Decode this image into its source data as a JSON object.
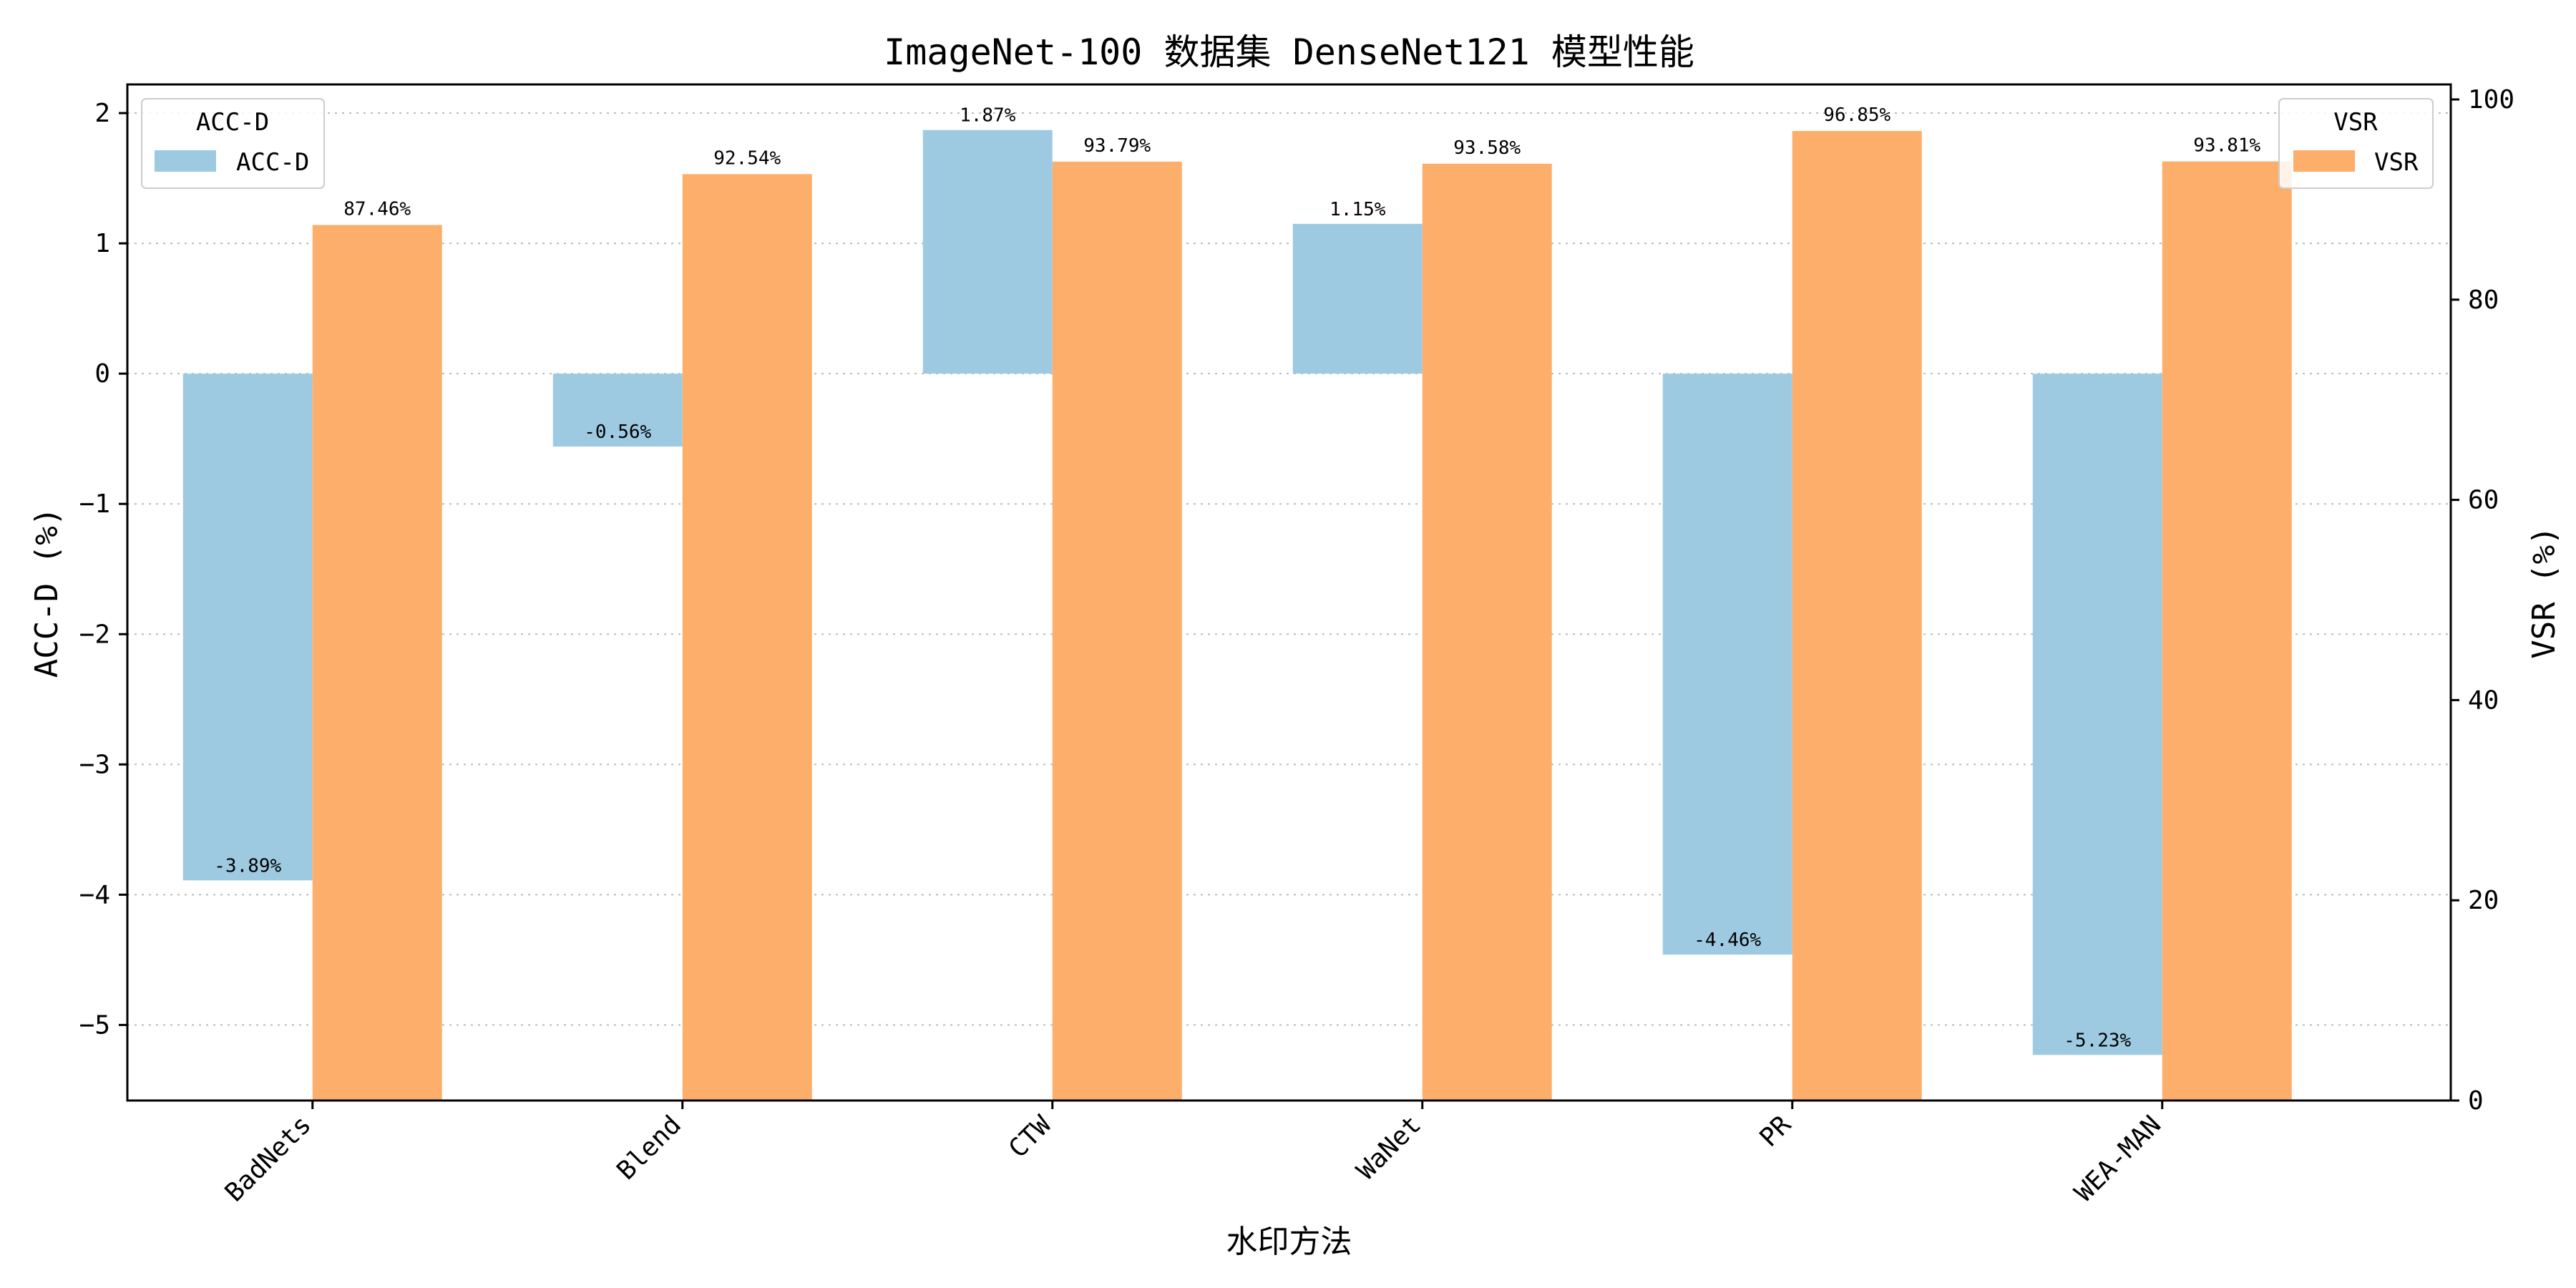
{
  "chart_data": {
    "type": "bar",
    "title": "ImageNet-100 数据集 DenseNet121 模型性能",
    "xlabel": "水印方法",
    "ylabel_left": "ACC-D (%)",
    "ylabel_right": "VSR (%)",
    "categories": [
      "BadNets",
      "Blend",
      "CTW",
      "WaNet",
      "PR",
      "WEA-MAN"
    ],
    "series": [
      {
        "name": "ACC-D",
        "axis": "left",
        "values": [
          -3.89,
          -0.56,
          1.87,
          1.15,
          -4.46,
          -5.23
        ],
        "labels": [
          "-3.89%",
          "-0.56%",
          "1.87%",
          "1.15%",
          "-4.46%",
          "-5.23%"
        ]
      },
      {
        "name": "VSR",
        "axis": "right",
        "values": [
          87.46,
          92.54,
          93.79,
          93.58,
          96.85,
          93.81
        ],
        "labels": [
          "87.46%",
          "92.54%",
          "93.79%",
          "93.58%",
          "96.85%",
          "93.81%"
        ]
      }
    ],
    "ylim_left": [
      -5.58,
      2.22
    ],
    "ylim_right": [
      0,
      101.5
    ],
    "yticks_left": [
      "2",
      "1",
      "0",
      "−1",
      "−2",
      "−3",
      "−4",
      "−5"
    ],
    "yticks_left_values": [
      2,
      1,
      0,
      -1,
      -2,
      -3,
      -4,
      -5
    ],
    "yticks_right": [
      "100",
      "80",
      "60",
      "40",
      "20",
      "0"
    ],
    "yticks_right_values": [
      100,
      80,
      60,
      40,
      20,
      0
    ],
    "grid": "horizontal dotted",
    "legend_left": {
      "title": "ACC-D",
      "entry": "ACC-D",
      "placement": "top-left"
    },
    "legend_right": {
      "title": "VSR",
      "entry": "VSR",
      "placement": "top-right"
    },
    "colors": {
      "acc_d": "#9ecae1",
      "vsr": "#fdae6b",
      "grid": "#bbbbbb"
    }
  }
}
